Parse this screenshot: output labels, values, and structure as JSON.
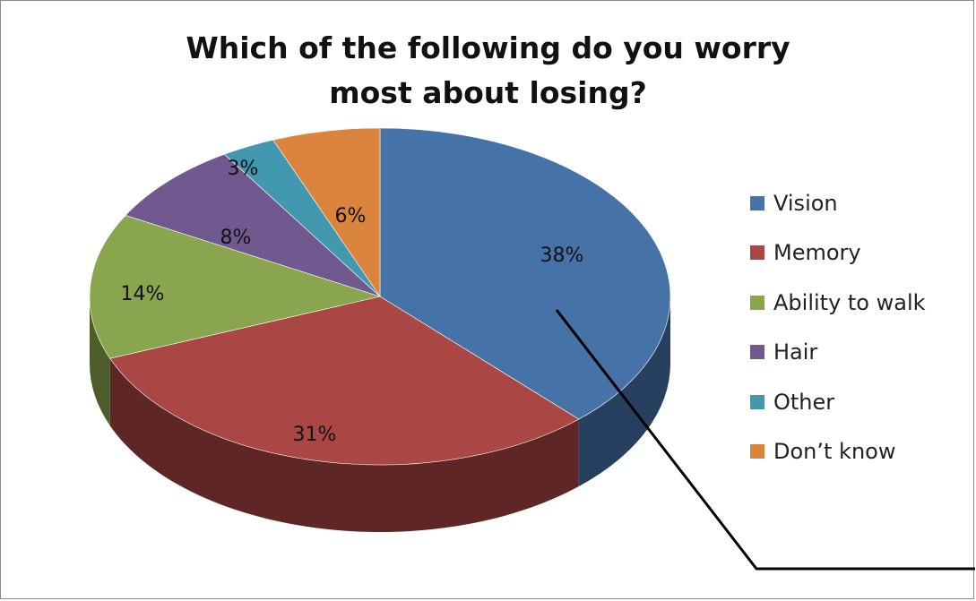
{
  "chart_data": {
    "type": "pie",
    "title_lines": [
      "Which of the following do you worry",
      "most about losing?"
    ],
    "categories": [
      "Vision",
      "Memory",
      "Ability to walk",
      "Hair",
      "Other",
      "Don’t know"
    ],
    "values": [
      38,
      31,
      14,
      8,
      3,
      6
    ],
    "labels": [
      "38%",
      "31%",
      "14%",
      "8%",
      "3%",
      "6%"
    ],
    "colors": [
      "#4572a7",
      "#aa4643",
      "#89a54e",
      "#71588f",
      "#4198af",
      "#db843d"
    ],
    "side_colors": [
      "#27405f",
      "#5e2624",
      "#4c5c2b",
      "#3e3050",
      "#245462",
      "#7a4a22"
    ],
    "legend_position": "right"
  }
}
